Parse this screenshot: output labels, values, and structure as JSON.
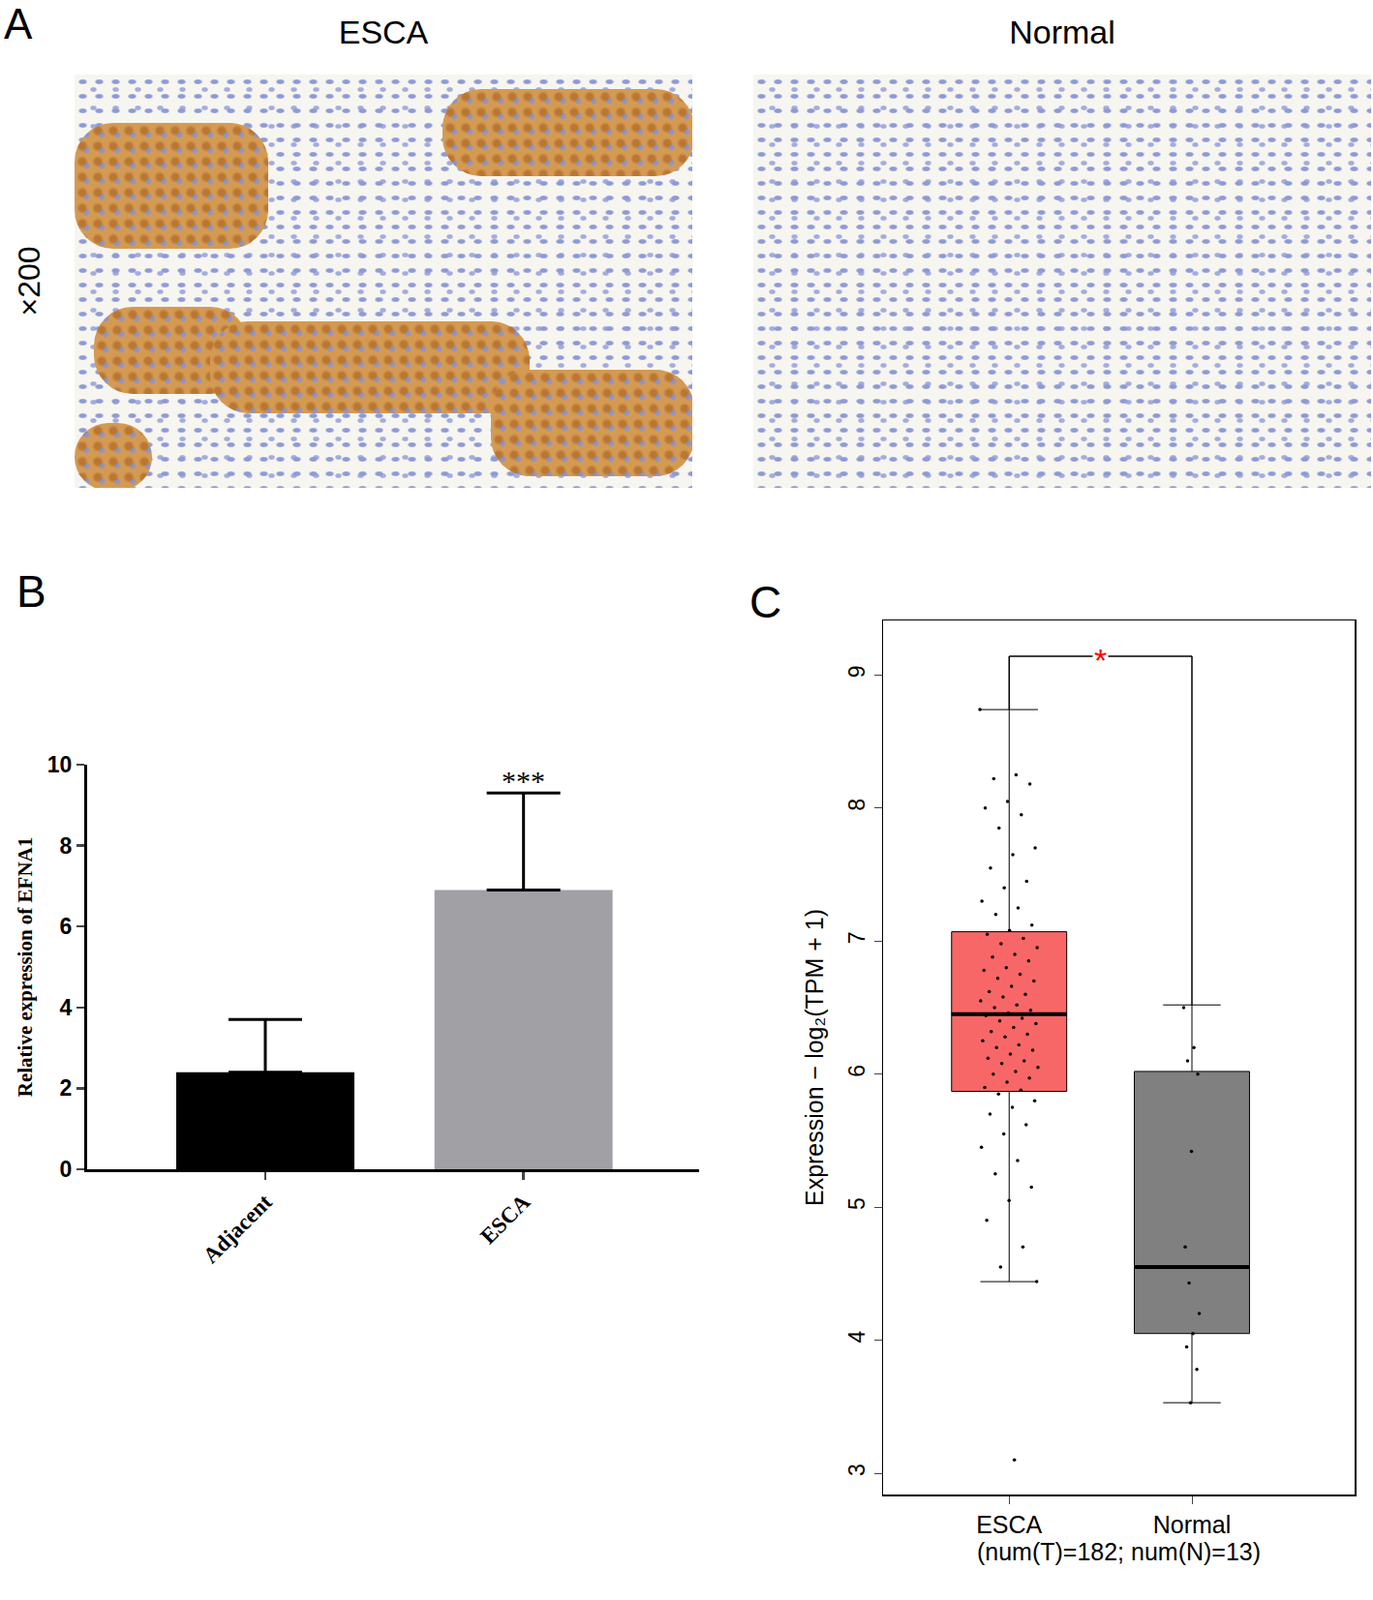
{
  "panel_a": {
    "label": "A",
    "magnification": "×200",
    "images": [
      "ESCA",
      "Normal"
    ]
  },
  "chart_data": [
    {
      "type": "bar",
      "panel": "B",
      "categories": [
        "Adjacent",
        "ESCA"
      ],
      "values": [
        2.4,
        6.9
      ],
      "errors": [
        1.3,
        2.4
      ],
      "colors": [
        "#000000",
        "#a1a0a5"
      ],
      "ylabel": "Relative expression of EFNA1",
      "ylim": [
        0,
        10
      ],
      "yticks": [
        0,
        2,
        4,
        6,
        8,
        10
      ],
      "annotations": [
        {
          "category": "ESCA",
          "text": "***"
        }
      ]
    },
    {
      "type": "box",
      "panel": "C",
      "categories": [
        "ESCA",
        "Normal"
      ],
      "colors": [
        "#f86767",
        "#808080"
      ],
      "q1": [
        5.87,
        4.05
      ],
      "median": [
        6.45,
        4.55
      ],
      "q3": [
        7.07,
        6.02
      ],
      "lower_whisker": [
        4.44,
        3.53
      ],
      "upper_whisker": [
        8.74,
        6.52
      ],
      "points": [
        [
          8.74,
          8.25,
          8.22,
          8.18,
          8.05,
          8.0,
          7.95,
          7.85,
          7.7,
          7.65,
          7.55,
          7.45,
          7.4,
          7.3,
          7.25,
          7.2,
          7.12,
          7.08,
          7.05,
          7.02,
          6.98,
          6.95,
          6.9,
          6.88,
          6.85,
          6.8,
          6.78,
          6.75,
          6.72,
          6.7,
          6.66,
          6.62,
          6.6,
          6.58,
          6.55,
          6.52,
          6.5,
          6.48,
          6.46,
          6.44,
          6.42,
          6.4,
          6.38,
          6.35,
          6.32,
          6.3,
          6.28,
          6.25,
          6.22,
          6.2,
          6.18,
          6.15,
          6.12,
          6.1,
          6.08,
          6.05,
          6.02,
          6.0,
          5.97,
          5.94,
          5.9,
          5.88,
          5.85,
          5.8,
          5.75,
          5.7,
          5.62,
          5.55,
          5.45,
          5.35,
          5.25,
          5.15,
          5.05,
          4.9,
          4.7,
          4.55,
          4.44,
          3.1
        ],
        [
          6.5,
          6.2,
          6.1,
          6.0,
          5.42,
          4.7,
          4.55,
          4.43,
          4.2,
          4.05,
          3.95,
          3.78,
          3.53
        ]
      ],
      "xlabel": "(num(T)=182; num(N)=13)",
      "ylabel": "Expression − log₂(TPM + 1)",
      "ylim": [
        2.84,
        9.41
      ],
      "yticks": [
        3,
        4,
        5,
        6,
        7,
        8,
        9
      ],
      "significance": {
        "label": "*",
        "y": 9.14,
        "color": "#ff0000"
      }
    }
  ]
}
